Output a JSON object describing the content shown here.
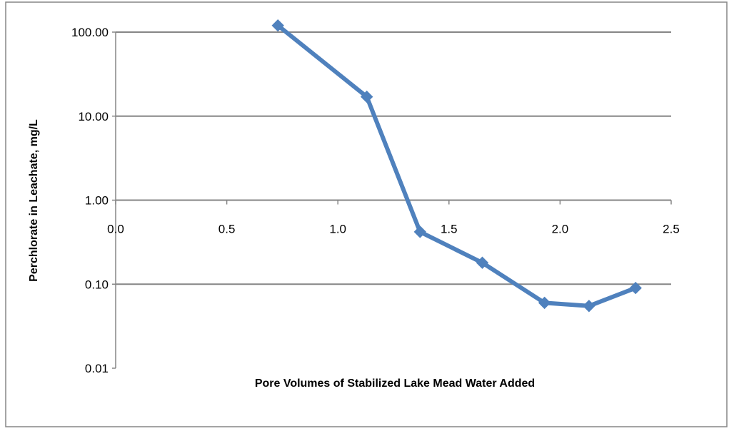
{
  "chart_data": {
    "type": "line",
    "xlabel": "Pore Volumes of Stabilized  Lake Mead  Water Added",
    "ylabel": "Perchlorate in Leachate,  mg/L",
    "x_ticks": [
      "0.0",
      "0.5",
      "1.0",
      "1.5",
      "2.0",
      "2.5"
    ],
    "x_tick_values": [
      0.0,
      0.5,
      1.0,
      1.5,
      2.0,
      2.5
    ],
    "y_ticks": [
      "100.00",
      "10.00",
      "1.00",
      "0.10",
      "0.01"
    ],
    "y_tick_values": [
      100,
      10,
      1,
      0.1,
      0.01
    ],
    "xlim": [
      0,
      2.5
    ],
    "ylim": [
      0.01,
      100
    ],
    "y_scale": "log",
    "x_axis_crosses_at_y": 1,
    "grid": "horizontal",
    "legend": "none",
    "marker": "diamond",
    "series": [
      {
        "x": [
          0.73,
          1.13,
          1.37,
          1.65,
          1.93,
          2.13,
          2.34
        ],
        "values": [
          120,
          17,
          0.42,
          0.18,
          0.06,
          0.055,
          0.09
        ],
        "color": "#4f81bd"
      }
    ],
    "colors": {
      "series": "#4f81bd",
      "grid": "#868686",
      "axis": "#868686",
      "frame": "#868686"
    }
  }
}
